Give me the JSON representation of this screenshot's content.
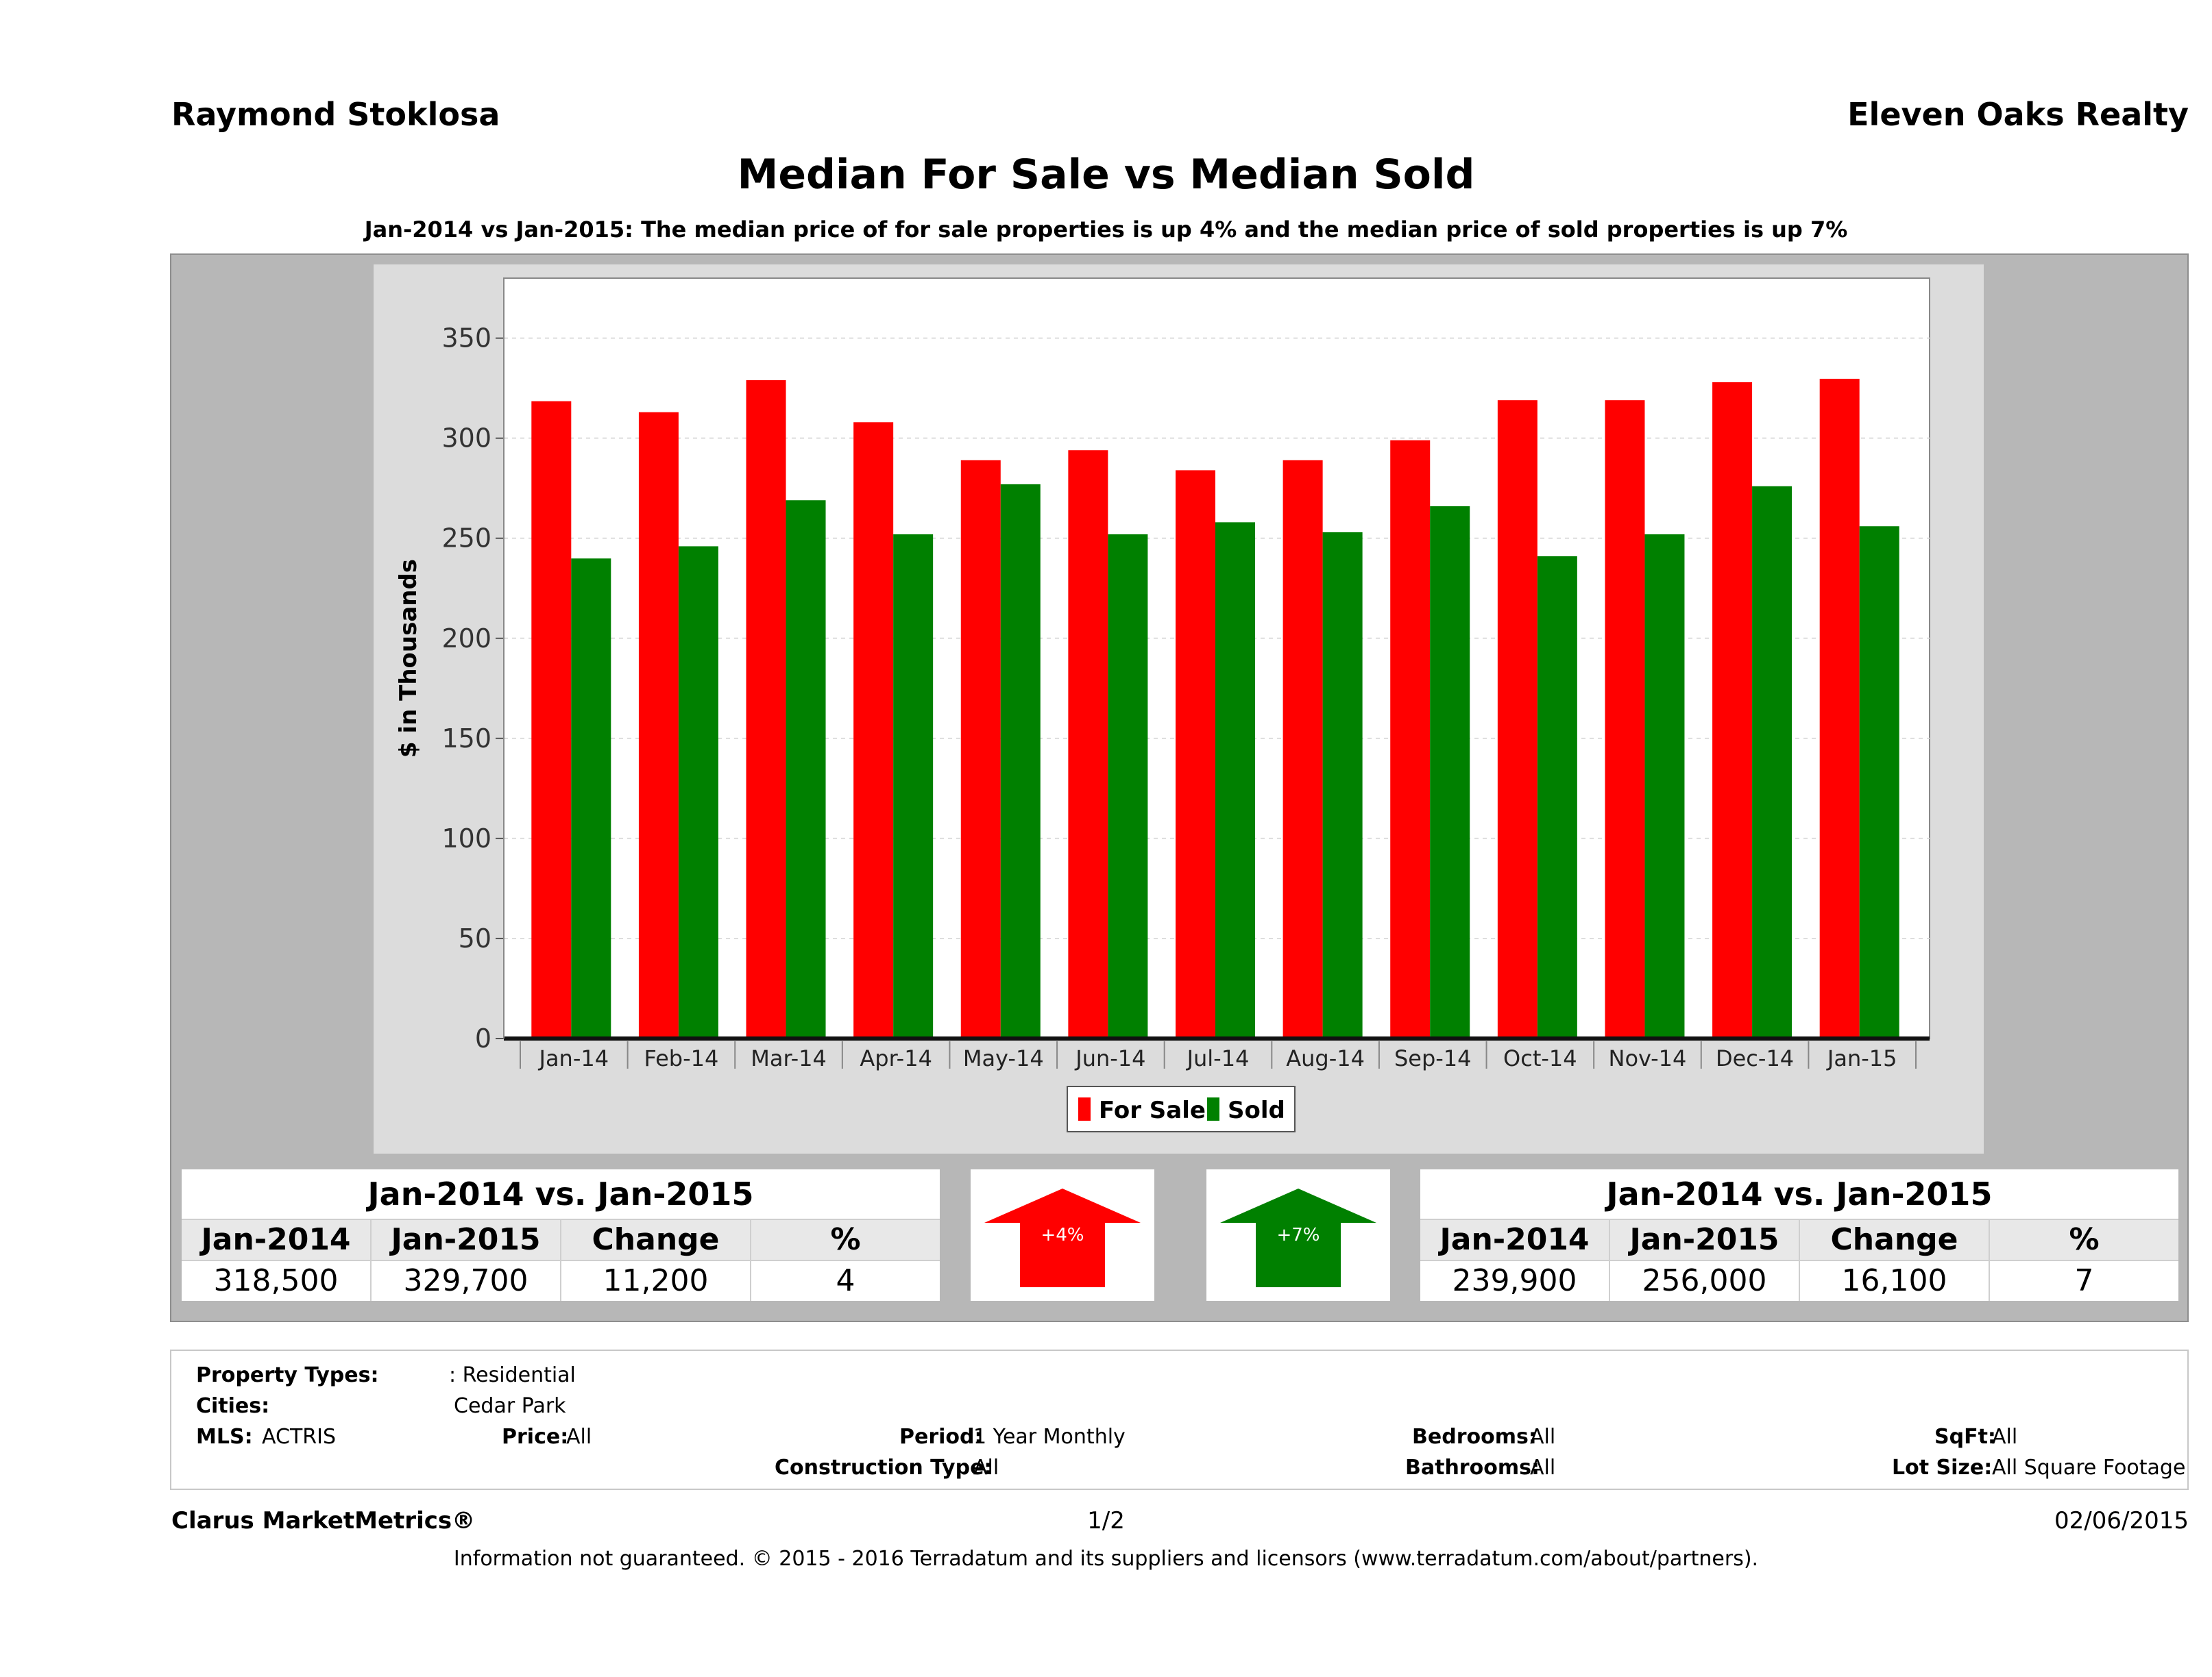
{
  "header": {
    "agent": "Raymond Stoklosa",
    "brokerage": "Eleven Oaks Realty",
    "title": "Median For Sale vs Median Sold",
    "subtitle": "Jan-2014 vs Jan-2015: The median price of for sale properties is up 4% and the median price of sold properties is up 7%"
  },
  "chart_data": {
    "type": "bar",
    "ylabel": "$ in Thousands",
    "xlabel": "",
    "ylim": [
      0,
      380
    ],
    "yticks": [
      0,
      50,
      100,
      150,
      200,
      250,
      300,
      350
    ],
    "grid": true,
    "legend_position": "bottom",
    "categories": [
      "Jan-14",
      "Feb-14",
      "Mar-14",
      "Apr-14",
      "May-14",
      "Jun-14",
      "Jul-14",
      "Aug-14",
      "Sep-14",
      "Oct-14",
      "Nov-14",
      "Dec-14",
      "Jan-15"
    ],
    "series": [
      {
        "name": "For Sale",
        "color": "#ff0000",
        "values": [
          318.5,
          313,
          329,
          308,
          289,
          294,
          284,
          289,
          299,
          319,
          319,
          328,
          329.7
        ]
      },
      {
        "name": "Sold",
        "color": "#008000",
        "values": [
          239.9,
          246,
          269,
          252,
          277,
          252,
          258,
          253,
          266,
          241,
          252,
          276,
          256
        ]
      }
    ]
  },
  "summary_for_sale": {
    "title": "Jan-2014 vs. Jan-2015",
    "headers": [
      "Jan-2014",
      "Jan-2015",
      "Change",
      "%"
    ],
    "values": [
      "318,500",
      "329,700",
      "11,200",
      "4"
    ],
    "arrow_label": "+4%",
    "arrow_color": "#ff0000"
  },
  "summary_sold": {
    "title": "Jan-2014 vs. Jan-2015",
    "headers": [
      "Jan-2014",
      "Jan-2015",
      "Change",
      "%"
    ],
    "values": [
      "239,900",
      "256,000",
      "16,100",
      "7"
    ],
    "arrow_label": "+7%",
    "arrow_color": "#008000"
  },
  "filters": {
    "property_types_label": "Property Types:",
    "property_types_value": ": Residential",
    "cities_label": "Cities:",
    "cities_value": "Cedar Park",
    "mls_label": "MLS:",
    "mls_value": "ACTRIS",
    "price_label": "Price:",
    "price_value": "All",
    "period_label": "Period:",
    "period_value": "1 Year Monthly",
    "construction_label": "Construction Type:",
    "construction_value": "All",
    "bedrooms_label": "Bedrooms:",
    "bedrooms_value": "All",
    "bathrooms_label": "Bathrooms:",
    "bathrooms_value": "All",
    "sqft_label": "SqFt:",
    "sqft_value": "All",
    "lot_label": "Lot Size:",
    "lot_value": "All Square Footage"
  },
  "footer": {
    "brand": "Clarus MarketMetrics®",
    "page": "1/2",
    "date": "02/06/2015",
    "disclaimer": "Information not guaranteed. © 2015 - 2016 Terradatum and its suppliers and licensors (www.terradatum.com/about/partners)."
  }
}
